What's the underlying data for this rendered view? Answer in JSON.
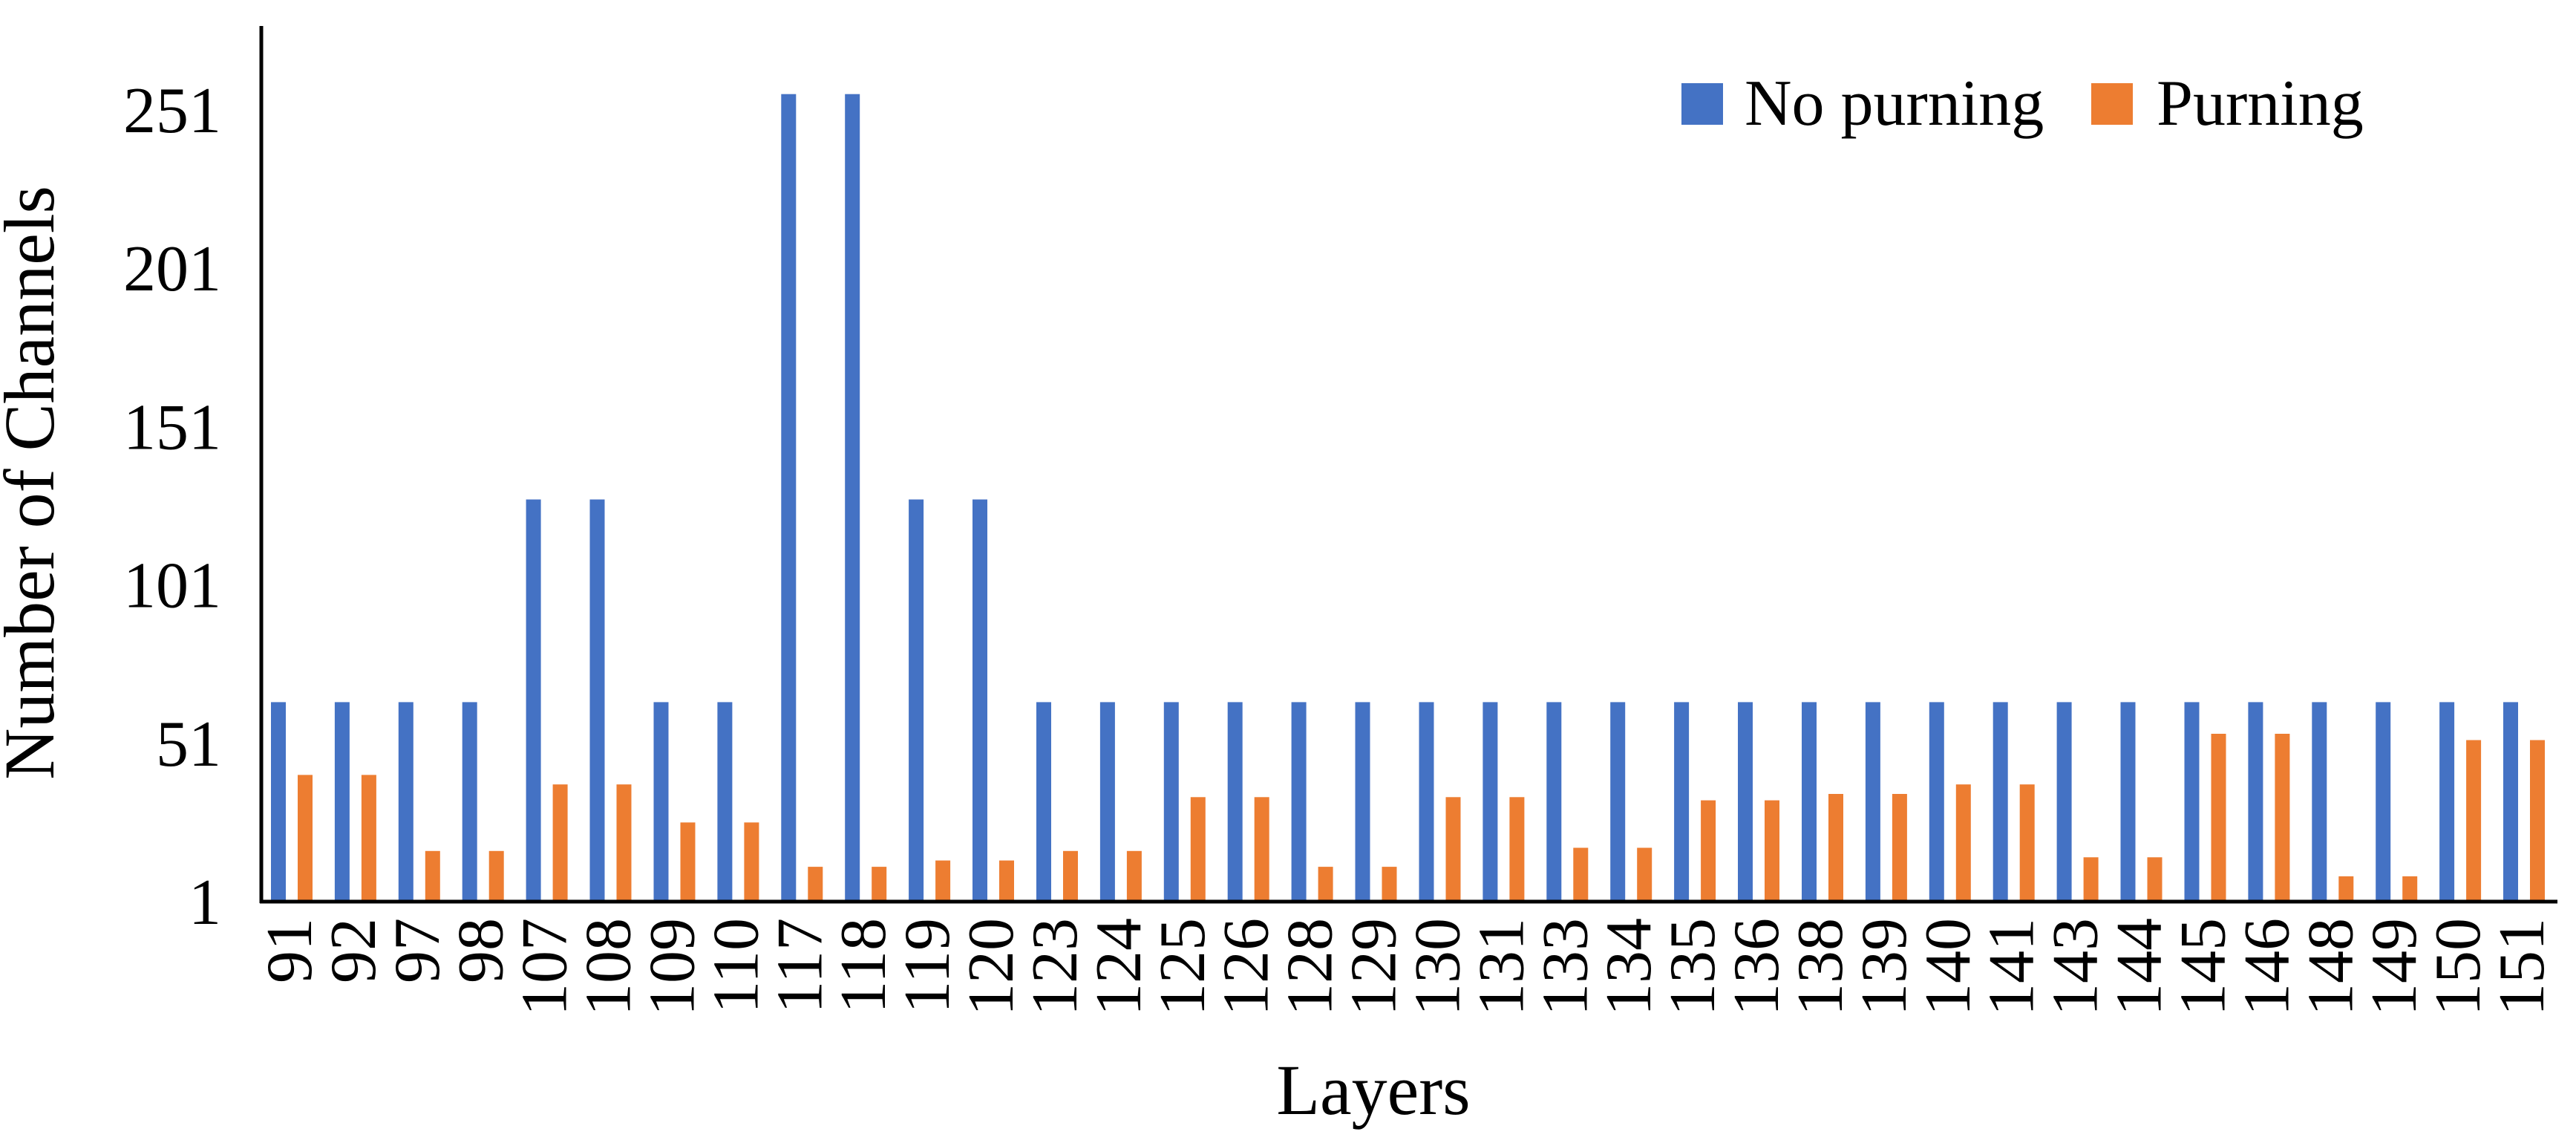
{
  "chart_data": {
    "type": "bar",
    "title": "",
    "xlabel": "Layers",
    "ylabel": "Number of Channels",
    "yticks": [
      1,
      51,
      101,
      151,
      201,
      251
    ],
    "ylim": [
      1,
      281
    ],
    "grid": false,
    "legend_position": "top-right",
    "categories": [
      "91",
      "92",
      "97",
      "98",
      "107",
      "108",
      "109",
      "110",
      "117",
      "118",
      "119",
      "120",
      "123",
      "124",
      "125",
      "126",
      "128",
      "129",
      "130",
      "131",
      "133",
      "134",
      "135",
      "136",
      "138",
      "139",
      "140",
      "141",
      "143",
      "144",
      "145",
      "146",
      "148",
      "149",
      "150",
      "151"
    ],
    "series": [
      {
        "name": "No purning",
        "color": "#4472C4",
        "values": [
          64,
          64,
          64,
          64,
          128,
          128,
          64,
          64,
          256,
          256,
          128,
          128,
          64,
          64,
          64,
          64,
          64,
          64,
          64,
          64,
          64,
          64,
          64,
          64,
          64,
          64,
          64,
          64,
          64,
          64,
          64,
          64,
          64,
          64,
          64,
          64
        ]
      },
      {
        "name": "Purning",
        "color": "#ED7D31",
        "values": [
          41,
          41,
          17,
          17,
          38,
          38,
          26,
          26,
          12,
          12,
          14,
          14,
          17,
          17,
          34,
          34,
          12,
          12,
          34,
          34,
          18,
          18,
          33,
          33,
          35,
          35,
          38,
          38,
          15,
          15,
          54,
          54,
          9,
          9,
          52,
          52
        ]
      }
    ]
  }
}
